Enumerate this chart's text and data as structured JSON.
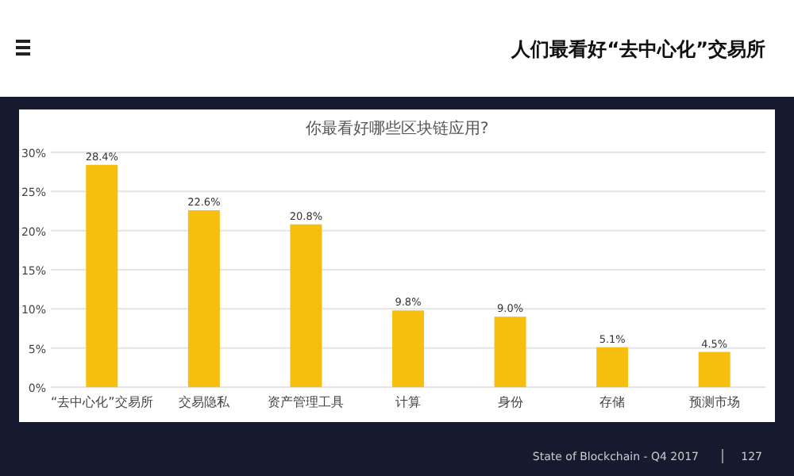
{
  "chart_data": {
    "type": "bar",
    "title": "你最看好哪些区块链应用?",
    "subtitle": "人们最看好“去中心化”交易所",
    "categories": [
      "“去中心化”交易所",
      "交易隐私",
      "资产管理工具",
      "计算",
      "身份",
      "存储",
      "预测市场"
    ],
    "series": [
      {
        "color": "#f6bf0f",
        "values": [
          28.4,
          22.6,
          20.8,
          9.8,
          9.0,
          5.1,
          4.5
        ],
        "value_labels": [
          "28.4%",
          "22.6%",
          "20.8%",
          "9.8%",
          "9.0%",
          "5.1%",
          "4.5%"
        ]
      }
    ],
    "ylim": [
      0,
      30
    ],
    "yticks": [
      {
        "value": 0,
        "label": "0%"
      },
      {
        "value": 5,
        "label": "5%"
      },
      {
        "value": 10,
        "label": "10%"
      },
      {
        "value": 15,
        "label": "15%"
      },
      {
        "value": 20,
        "label": "20%"
      },
      {
        "value": 25,
        "label": "25%"
      },
      {
        "value": 30,
        "label": "30%"
      }
    ],
    "grid": "y",
    "annotations": [
      "State of Blockchain - Q4 2017",
      "127"
    ]
  }
}
